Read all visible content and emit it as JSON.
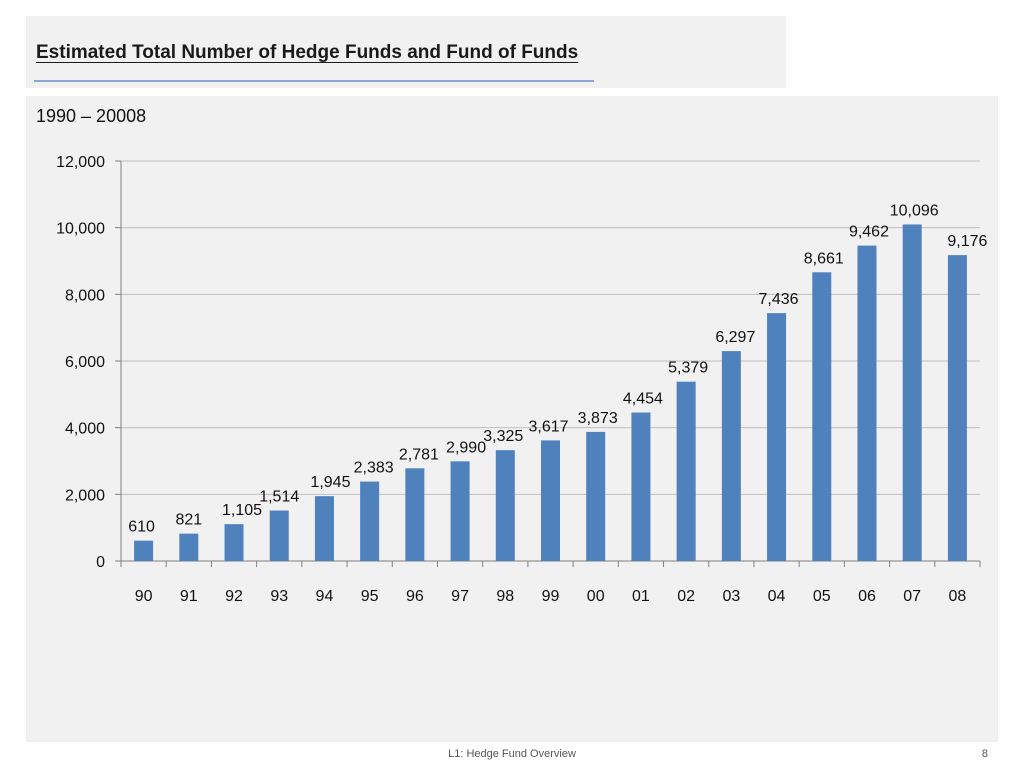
{
  "slide": {
    "title": "Estimated Total Number of Hedge Funds and Fund of Funds",
    "subtitle": "1990 – 20008",
    "footer_text": "L1: Hedge Fund Overview",
    "page_number": "8"
  },
  "chart_data": {
    "type": "bar",
    "title": "Estimated Total Number of Hedge Funds and Fund of Funds",
    "subtitle": "1990 – 20008",
    "categories": [
      "90",
      "91",
      "92",
      "93",
      "94",
      "95",
      "96",
      "97",
      "98",
      "99",
      "00",
      "01",
      "02",
      "03",
      "04",
      "05",
      "06",
      "07",
      "08"
    ],
    "values": [
      610,
      821,
      1105,
      1514,
      1945,
      2383,
      2781,
      2990,
      3325,
      3617,
      3873,
      4454,
      5379,
      6297,
      7436,
      8661,
      9462,
      10096,
      9176
    ],
    "value_labels": [
      "610",
      "821",
      "1,105",
      "1,514",
      "1,945",
      "2,383",
      "2,781",
      "2,990",
      "3,325",
      "3,617",
      "3,873",
      "4,454",
      "5,379",
      "6,297",
      "7,436",
      "8,661",
      "9,462",
      "10,096",
      "9,176"
    ],
    "y_ticks": [
      0,
      2000,
      4000,
      6000,
      8000,
      10000,
      12000
    ],
    "y_tick_labels": [
      "0",
      "2,000",
      "4,000",
      "6,000",
      "8,000",
      "10,000",
      "12,000"
    ],
    "ylim": [
      0,
      12000
    ],
    "grid": true,
    "legend": "none",
    "bar_color": "#4f81bd",
    "grid_color": "#c0c0c0"
  }
}
